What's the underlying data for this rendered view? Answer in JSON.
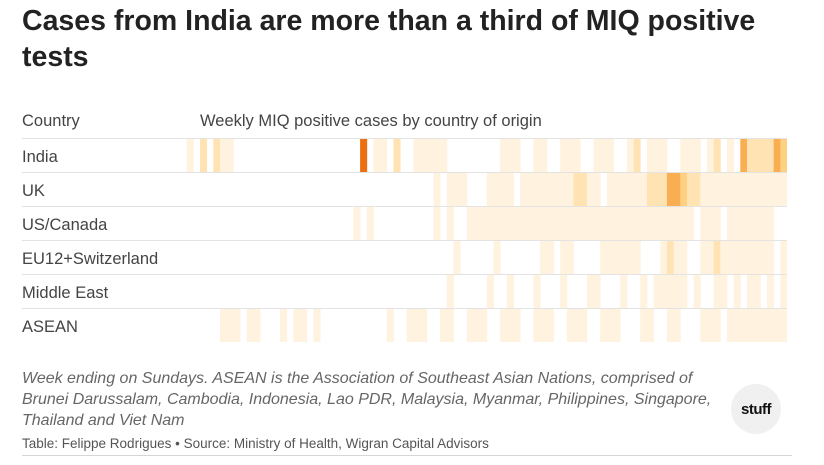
{
  "title": "Cases from India are more than a third of MIQ positive tests",
  "header": {
    "country": "Country",
    "weekly": "Weekly MIQ positive cases by country of origin"
  },
  "notes": "Week ending on Sundays. ASEAN is the Association of Southeast Asian Nations, comprised of Brunei Darussalam, Cambodia, Indonesia, Lao PDR, Malaysia, Myanmar, Philippines, Singapore, Thailand and Viet Nam",
  "source": "Table: Felippe Rodrigues • Source: Ministry of Health, Wigran Capital Advisors",
  "logo": "stuff",
  "colors": {
    "scale": [
      "#ffffff",
      "#fff2de",
      "#ffe3b3",
      "#fdd082",
      "#f9ae52",
      "#eb6f10"
    ]
  },
  "chart_data": {
    "type": "heatmap",
    "title": "Weekly MIQ positive cases by country of origin",
    "value_scale": "intensity levels 0 (no cases) to 5 (most cases), estimated",
    "rows": [
      "India",
      "UK",
      "US/Canada",
      "EU12+Switzerland",
      "Middle East",
      "ASEAN"
    ],
    "series": [
      {
        "name": "India",
        "values": [
          0,
          1,
          0,
          2,
          0,
          2,
          1,
          1,
          0,
          0,
          0,
          0,
          0,
          0,
          0,
          0,
          0,
          0,
          0,
          0,
          0,
          0,
          0,
          0,
          0,
          0,
          0,
          5,
          0,
          1,
          1,
          0,
          2,
          0,
          0,
          1,
          1,
          1,
          1,
          1,
          0,
          0,
          0,
          0,
          0,
          0,
          0,
          0,
          1,
          1,
          1,
          0,
          0,
          1,
          1,
          0,
          0,
          1,
          1,
          1,
          0,
          0,
          1,
          1,
          1,
          0,
          0,
          1,
          2,
          0,
          1,
          1,
          1,
          0,
          0,
          1,
          1,
          1,
          0,
          1,
          2,
          0,
          1,
          0,
          4,
          2,
          2,
          2,
          2,
          4,
          3
        ]
      },
      {
        "name": "UK",
        "values": [
          0,
          0,
          0,
          0,
          0,
          0,
          0,
          0,
          0,
          0,
          0,
          0,
          0,
          0,
          0,
          0,
          0,
          0,
          0,
          0,
          0,
          0,
          0,
          0,
          0,
          0,
          0,
          0,
          0,
          0,
          0,
          0,
          0,
          0,
          0,
          0,
          0,
          0,
          1,
          0,
          1,
          1,
          1,
          0,
          0,
          0,
          1,
          1,
          1,
          1,
          0,
          1,
          1,
          1,
          1,
          1,
          1,
          1,
          1,
          2,
          2,
          1,
          1,
          0,
          1,
          1,
          1,
          1,
          1,
          1,
          2,
          2,
          2,
          4,
          4,
          3,
          2,
          2,
          1,
          1,
          1,
          1,
          1,
          1,
          1,
          1,
          1,
          1,
          1,
          1,
          1
        ]
      },
      {
        "name": "US/Canada",
        "values": [
          0,
          0,
          0,
          0,
          0,
          0,
          0,
          0,
          0,
          0,
          0,
          0,
          0,
          0,
          0,
          0,
          0,
          0,
          0,
          0,
          0,
          0,
          0,
          0,
          0,
          0,
          1,
          0,
          1,
          0,
          0,
          0,
          0,
          0,
          0,
          0,
          0,
          0,
          1,
          0,
          1,
          0,
          0,
          1,
          1,
          1,
          1,
          1,
          1,
          1,
          1,
          1,
          1,
          1,
          1,
          1,
          1,
          1,
          1,
          1,
          1,
          1,
          1,
          1,
          1,
          1,
          1,
          1,
          1,
          1,
          1,
          1,
          1,
          1,
          1,
          1,
          1,
          0,
          1,
          1,
          1,
          0,
          1,
          1,
          1,
          1,
          1,
          1,
          1,
          0,
          0
        ]
      },
      {
        "name": "EU12+Switzerland",
        "values": [
          0,
          0,
          0,
          0,
          0,
          0,
          0,
          0,
          0,
          0,
          0,
          0,
          0,
          0,
          0,
          0,
          0,
          0,
          0,
          0,
          0,
          0,
          0,
          0,
          0,
          0,
          0,
          0,
          0,
          0,
          0,
          0,
          0,
          0,
          0,
          0,
          0,
          0,
          0,
          0,
          0,
          1,
          0,
          0,
          0,
          0,
          0,
          1,
          0,
          0,
          0,
          0,
          0,
          0,
          1,
          1,
          0,
          1,
          1,
          0,
          0,
          0,
          0,
          1,
          1,
          1,
          1,
          1,
          1,
          0,
          0,
          0,
          1,
          2,
          1,
          1,
          0,
          0,
          1,
          1,
          2,
          1,
          1,
          1,
          1,
          1,
          1,
          1,
          1,
          0,
          1
        ]
      },
      {
        "name": "Middle East",
        "values": [
          0,
          0,
          0,
          0,
          0,
          0,
          0,
          0,
          0,
          0,
          0,
          0,
          0,
          0,
          0,
          0,
          0,
          0,
          0,
          0,
          0,
          0,
          0,
          0,
          0,
          0,
          0,
          0,
          0,
          0,
          0,
          0,
          0,
          0,
          0,
          0,
          0,
          0,
          0,
          0,
          1,
          0,
          0,
          0,
          0,
          0,
          1,
          0,
          0,
          1,
          0,
          0,
          0,
          1,
          0,
          0,
          0,
          1,
          0,
          0,
          0,
          1,
          1,
          0,
          0,
          0,
          1,
          0,
          0,
          1,
          0,
          1,
          1,
          1,
          1,
          1,
          0,
          1,
          0,
          0,
          1,
          1,
          0,
          1,
          0,
          1,
          1,
          0,
          1,
          0,
          1
        ]
      },
      {
        "name": "ASEAN",
        "values": [
          0,
          0,
          0,
          0,
          0,
          0,
          1,
          1,
          1,
          0,
          1,
          1,
          0,
          0,
          0,
          1,
          0,
          1,
          1,
          0,
          1,
          0,
          0,
          0,
          0,
          0,
          0,
          0,
          0,
          0,
          0,
          1,
          0,
          0,
          1,
          1,
          1,
          0,
          0,
          1,
          1,
          0,
          0,
          1,
          1,
          1,
          0,
          0,
          1,
          1,
          1,
          0,
          0,
          1,
          1,
          1,
          0,
          0,
          1,
          1,
          1,
          0,
          0,
          1,
          1,
          1,
          0,
          0,
          0,
          1,
          1,
          0,
          0,
          1,
          1,
          0,
          0,
          0,
          1,
          1,
          1,
          0,
          1,
          1,
          1,
          1,
          1,
          1,
          1,
          1,
          1
        ]
      }
    ]
  }
}
